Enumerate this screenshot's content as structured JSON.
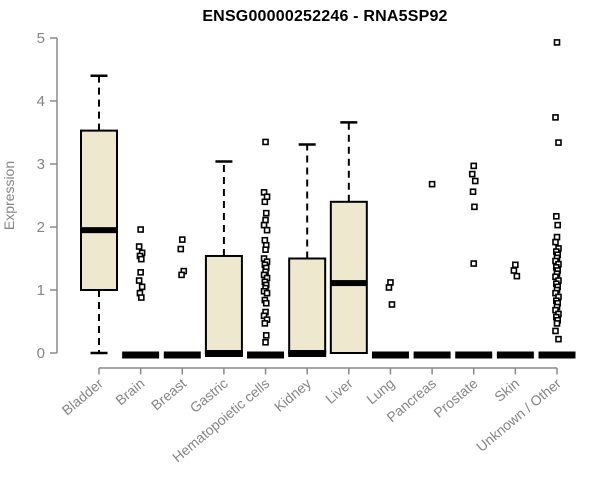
{
  "chart_data": {
    "type": "boxplot",
    "title": "ENSG00000252246 - RNA5SP92",
    "xlabel": "",
    "ylabel": "Expression",
    "ylim": [
      0,
      5
    ],
    "y_ticks": [
      0,
      1,
      2,
      3,
      4,
      5
    ],
    "grid": false,
    "legend": "none",
    "categories": [
      "Bladder",
      "Brain",
      "Breast",
      "Gastric",
      "Hematopoietic cells",
      "Kidney",
      "Liver",
      "Lung",
      "Pancreas",
      "Prostate",
      "Skin",
      "Unknown / Other"
    ],
    "series": [
      {
        "name": "Bladder",
        "whisker_low": 0,
        "q1": 1.0,
        "median": 1.95,
        "q3": 3.53,
        "whisker_high": 4.4,
        "outliers": []
      },
      {
        "name": "Brain",
        "whisker_low": 0,
        "q1": 0,
        "median": 0,
        "q3": 0,
        "whisker_high": 0,
        "outliers": [
          1.96,
          1.69,
          1.59,
          1.54,
          1.49,
          1.28,
          1.15,
          1.05,
          0.95,
          0.88
        ]
      },
      {
        "name": "Breast",
        "whisker_low": 0,
        "q1": 0,
        "median": 0,
        "q3": 0,
        "whisker_high": 0,
        "outliers": [
          1.8,
          1.65,
          1.3,
          1.24
        ]
      },
      {
        "name": "Gastric",
        "whisker_low": 0,
        "q1": 0,
        "median": 0,
        "q3": 1.54,
        "whisker_high": 3.04,
        "outliers": []
      },
      {
        "name": "Hematopoietic cells",
        "whisker_low": 0,
        "q1": 0,
        "median": 0,
        "q3": 0,
        "whisker_high": 0,
        "outliers": [
          3.35,
          2.55,
          2.48,
          2.4,
          2.22,
          2.11,
          2.03,
          1.95,
          1.79,
          1.71,
          1.64,
          1.5,
          1.45,
          1.4,
          1.35,
          1.29,
          1.24,
          1.19,
          1.13,
          1.08,
          1.03,
          0.98,
          0.95,
          0.84,
          0.79,
          0.65,
          0.59,
          0.53,
          0.47,
          0.28,
          0.17
        ]
      },
      {
        "name": "Kidney",
        "whisker_low": 0,
        "q1": 0,
        "median": 0,
        "q3": 1.5,
        "whisker_high": 3.31,
        "outliers": []
      },
      {
        "name": "Liver",
        "whisker_low": 0,
        "q1": 0,
        "median": 1.11,
        "q3": 2.4,
        "whisker_high": 3.66,
        "outliers": []
      },
      {
        "name": "Lung",
        "whisker_low": 0,
        "q1": 0,
        "median": 0,
        "q3": 0,
        "whisker_high": 0,
        "outliers": [
          1.12,
          1.04,
          0.77
        ]
      },
      {
        "name": "Pancreas",
        "whisker_low": 0,
        "q1": 0,
        "median": 0,
        "q3": 0,
        "whisker_high": 0,
        "outliers": [
          2.68
        ]
      },
      {
        "name": "Prostate",
        "whisker_low": 0,
        "q1": 0,
        "median": 0,
        "q3": 0,
        "whisker_high": 0,
        "outliers": [
          2.97,
          2.84,
          2.73,
          2.56,
          2.32,
          1.42
        ]
      },
      {
        "name": "Skin",
        "whisker_low": 0,
        "q1": 0,
        "median": 0,
        "q3": 0,
        "whisker_high": 0,
        "outliers": [
          1.4,
          1.31,
          1.22
        ]
      },
      {
        "name": "Unknown / Other",
        "whisker_low": 0,
        "q1": 0,
        "median": 0,
        "q3": 0,
        "whisker_high": 0,
        "outliers": [
          4.93,
          3.74,
          3.34,
          2.17,
          2.03,
          1.84,
          1.76,
          1.66,
          1.61,
          1.56,
          1.51,
          1.46,
          1.41,
          1.36,
          1.31,
          1.26,
          1.21,
          1.15,
          1.1,
          1.05,
          1.0,
          0.95,
          0.89,
          0.83,
          0.79,
          0.73,
          0.68,
          0.62,
          0.57,
          0.52,
          0.47,
          0.35,
          0.22
        ]
      }
    ],
    "colors": {
      "box_fill": "#EDE8CE",
      "box_border": "#000000",
      "median": "#000000",
      "whisker": "#000000",
      "outlier": "#000000",
      "axis_line": "#8a8a8a",
      "tick_text": "#858585",
      "title_text": "#000000",
      "background": "#ffffff"
    }
  }
}
